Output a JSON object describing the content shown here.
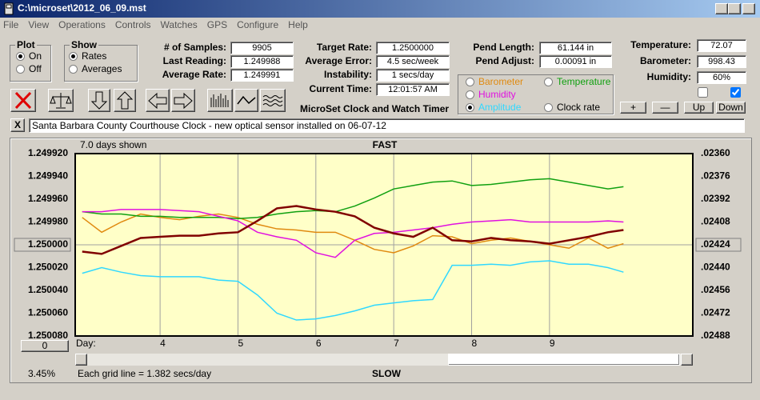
{
  "window": {
    "title": "C:\\microset\\2012_06_09.mst"
  },
  "menu": [
    "File",
    "View",
    "Operations",
    "Controls",
    "Watches",
    "GPS",
    "Configure",
    "Help"
  ],
  "plot_group": {
    "title": "Plot",
    "options": [
      "On",
      "Off"
    ]
  },
  "show_group": {
    "title": "Show",
    "options": [
      "Rates",
      "Averages"
    ]
  },
  "fields": [
    {
      "label": "# of Samples:",
      "value": "9905"
    },
    {
      "label": "Last Reading:",
      "value": "1.249988"
    },
    {
      "label": "Average Rate:",
      "value": "1.249991"
    },
    {
      "label": "Target Rate:",
      "value": "1.2500000"
    },
    {
      "label": "Average Error:",
      "value": "4.5 sec/week"
    },
    {
      "label": "Instability:",
      "value": "1 secs/day"
    },
    {
      "label": "Current Time:",
      "value": "12:01:57 AM"
    },
    {
      "label": "Pend Length:",
      "value": "61.144 in"
    },
    {
      "label": "Pend Adjust:",
      "value": "0.00091 in"
    },
    {
      "label": "Temperature:",
      "value": "72.07"
    },
    {
      "label": "Barometer:",
      "value": "998.43"
    },
    {
      "label": "Humidity:",
      "value": "60%"
    }
  ],
  "app_title": "MicroSet Clock and Watch Timer",
  "buttons": [
    "+",
    "—",
    "Up",
    "Down"
  ],
  "close_button": "X",
  "note": "Santa Barbara County Courthouse Clock - new optical sensor installed on 06-07-12",
  "chart_data": {
    "type": "line",
    "subtitle": "7.0 days shown",
    "top_label": "FAST",
    "bottom_label": "SLOW",
    "x_label": "Day:",
    "footer": "Each grid line = 1.382 secs/day",
    "percent": "3.45%",
    "offset_button": "0",
    "x": [
      3.0,
      3.25,
      3.5,
      3.75,
      4.0,
      4.25,
      4.5,
      4.75,
      5.0,
      5.25,
      5.5,
      5.75,
      6.0,
      6.25,
      6.5,
      6.75,
      7.0,
      7.25,
      7.5,
      7.75,
      8.0,
      8.25,
      8.5,
      8.75,
      9.0,
      9.25,
      9.5,
      9.75,
      9.95
    ],
    "xlim": [
      2.91,
      10.84
    ],
    "xticks": [
      4,
      5,
      6,
      7,
      8,
      9
    ],
    "ylim": [
      1.25008,
      1.24992
    ],
    "yticks": [
      {
        "value": 1.24992,
        "label": "1.249920"
      },
      {
        "value": 1.24994,
        "label": "1.249940"
      },
      {
        "value": 1.24996,
        "label": "1.249960"
      },
      {
        "value": 1.24998,
        "label": "1.249980"
      },
      {
        "value": 1.25,
        "label": "1.250000"
      },
      {
        "value": 1.25002,
        "label": "1.250020"
      },
      {
        "value": 1.25004,
        "label": "1.250040"
      },
      {
        "value": 1.25006,
        "label": "1.250060"
      },
      {
        "value": 1.25008,
        "label": "1.250080"
      }
    ],
    "y2lim": [
      0.02488,
      0.0236
    ],
    "y2ticks": [
      {
        "value": 0.0236,
        "label": ".02360"
      },
      {
        "value": 0.02376,
        "label": ".02376"
      },
      {
        "value": 0.02392,
        "label": ".02392"
      },
      {
        "value": 0.02408,
        "label": ".02408"
      },
      {
        "value": 0.02424,
        "label": ".02424"
      },
      {
        "value": 0.0244,
        "label": ".02440"
      },
      {
        "value": 0.02456,
        "label": ".02456"
      },
      {
        "value": 0.02472,
        "label": ".02472"
      },
      {
        "value": 0.02488,
        "label": ".02488"
      }
    ],
    "series": [
      {
        "name": "Barometer",
        "color": "#e08a10",
        "values": [
          1.249976,
          1.249989,
          1.24998,
          1.249973,
          1.249976,
          1.249978,
          1.249975,
          1.249973,
          1.249976,
          1.249982,
          1.249986,
          1.249987,
          1.249989,
          1.249989,
          1.249996,
          1.250004,
          1.250007,
          1.250001,
          1.249992,
          1.249993,
          1.249999,
          1.249996,
          1.249994,
          1.249997,
          1.25,
          1.250003,
          1.249994,
          1.250003,
          1.249999
        ]
      },
      {
        "name": "Temperature",
        "color": "#10a010",
        "values": [
          1.249971,
          1.249973,
          1.249973,
          1.249975,
          1.249975,
          1.249976,
          1.249976,
          1.249976,
          1.249977,
          1.249976,
          1.249973,
          1.249971,
          1.24997,
          1.249971,
          1.249966,
          1.249959,
          1.249951,
          1.249948,
          1.249945,
          1.249944,
          1.249948,
          1.249947,
          1.249945,
          1.249943,
          1.249942,
          1.249945,
          1.249948,
          1.249951,
          1.249949
        ]
      },
      {
        "name": "Humidity",
        "color": "#e010e0",
        "values": [
          1.249971,
          1.249971,
          1.249969,
          1.249969,
          1.249969,
          1.24997,
          1.249971,
          1.249975,
          1.249979,
          1.249989,
          1.249993,
          1.249996,
          1.250007,
          1.250011,
          1.249996,
          1.24999,
          1.249989,
          1.249987,
          1.249985,
          1.249982,
          1.24998,
          1.249979,
          1.249978,
          1.24998,
          1.24998,
          1.24998,
          1.24998,
          1.249979,
          1.24998
        ]
      },
      {
        "name": "Amplitude",
        "color": "#30d8ff",
        "values": [
          1.250025,
          1.25002,
          1.250024,
          1.250027,
          1.250028,
          1.250028,
          1.250028,
          1.250031,
          1.250032,
          1.250044,
          1.25006,
          1.250066,
          1.250065,
          1.250062,
          1.250058,
          1.250053,
          1.250051,
          1.250049,
          1.250048,
          1.250018,
          1.250018,
          1.250017,
          1.250018,
          1.250015,
          1.250014,
          1.250017,
          1.250017,
          1.25002,
          1.250024
        ]
      },
      {
        "name": "Clock rate",
        "color": "#800000",
        "values": [
          1.250006,
          1.250008,
          1.250001,
          1.249994,
          1.249993,
          1.249992,
          1.249992,
          1.24999,
          1.249989,
          1.249979,
          1.249968,
          1.249966,
          1.249969,
          1.249971,
          1.249975,
          1.249985,
          1.24999,
          1.249993,
          1.249985,
          1.249996,
          1.249997,
          1.249994,
          1.249996,
          1.249997,
          1.249999,
          1.249996,
          1.249993,
          1.249989,
          1.249987
        ]
      }
    ]
  }
}
